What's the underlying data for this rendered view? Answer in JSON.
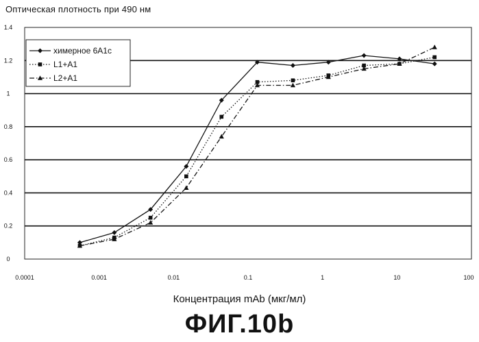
{
  "figure": {
    "y_title": "Оптическая плотность при 490 нм",
    "x_title": "Концентрация mAb  (мкг/мл)",
    "caption": "ФИГ.10b"
  },
  "chart_data": {
    "type": "line",
    "xscale": "log",
    "xlim": [
      0.0001,
      100
    ],
    "ylim": [
      0,
      1.4
    ],
    "yticks": [
      "0",
      "0.2",
      "0.4",
      "0.6",
      "0.8",
      "1",
      "1.2",
      "1.4"
    ],
    "xticks": [
      "0.0001",
      "0.001",
      "0.01",
      "0.1",
      "1",
      "10",
      "100"
    ],
    "grid": "horizontal",
    "legend_position": "top-left",
    "series": [
      {
        "name": "химерное 6A1c",
        "style": "solid",
        "marker": "diamond",
        "x": [
          0.00055,
          0.0016,
          0.0049,
          0.0148,
          0.044,
          0.133,
          0.4,
          1.2,
          3.6,
          10.8,
          32
        ],
        "y": [
          0.1,
          0.16,
          0.3,
          0.56,
          0.96,
          1.19,
          1.17,
          1.19,
          1.23,
          1.21,
          1.18
        ]
      },
      {
        "name": "L1+A1",
        "style": "dotted",
        "marker": "square",
        "x": [
          0.00055,
          0.0016,
          0.0049,
          0.0148,
          0.044,
          0.133,
          0.4,
          1.2,
          3.6,
          10.8,
          32
        ],
        "y": [
          0.08,
          0.13,
          0.25,
          0.5,
          0.86,
          1.07,
          1.08,
          1.11,
          1.17,
          1.18,
          1.22
        ]
      },
      {
        "name": "L2+A1",
        "style": "dashdot",
        "marker": "triangle",
        "x": [
          0.00055,
          0.0016,
          0.0049,
          0.0148,
          0.044,
          0.133,
          0.4,
          1.2,
          3.6,
          10.8,
          32
        ],
        "y": [
          0.08,
          0.12,
          0.22,
          0.43,
          0.74,
          1.05,
          1.05,
          1.1,
          1.15,
          1.18,
          1.28
        ]
      }
    ]
  }
}
